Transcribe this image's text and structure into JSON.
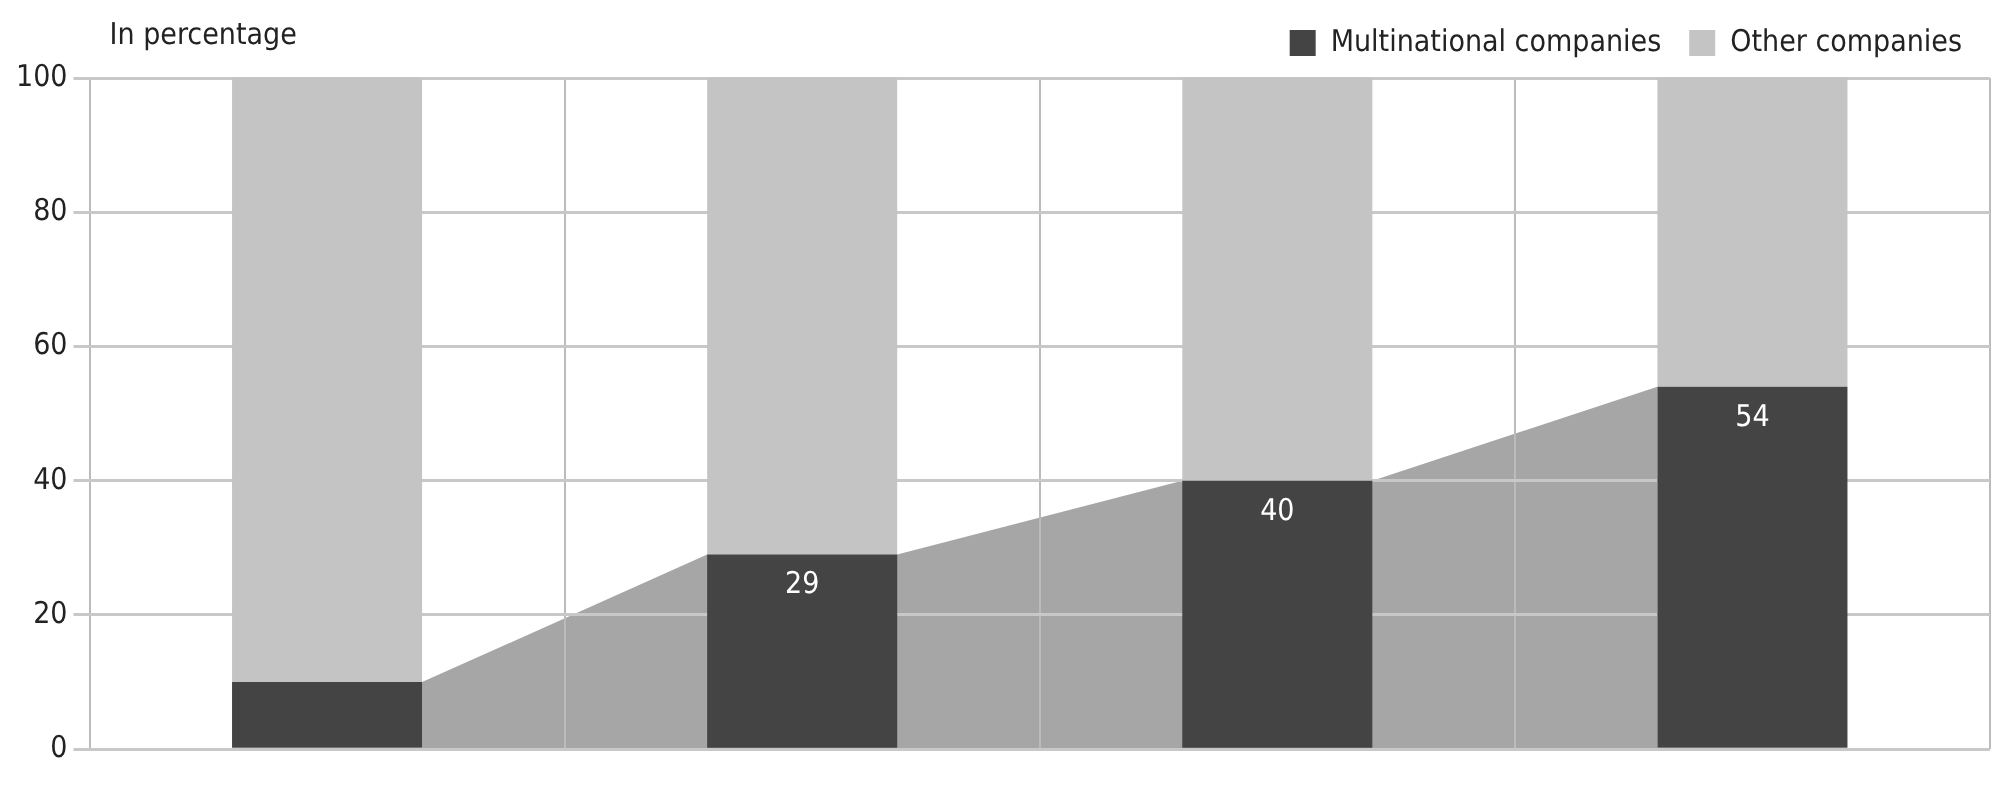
{
  "chart_data": {
    "type": "bar",
    "ylabel": "In percentage",
    "stacked": true,
    "categories": [
      null,
      null,
      null,
      null
    ],
    "series": [
      {
        "name": "Multinational companies",
        "color": "#444444",
        "values": [
          10,
          29,
          40,
          54
        ],
        "value_labels": [
          null,
          "29",
          "40",
          "54"
        ]
      },
      {
        "name": "Other companies",
        "color": "#c4c4c4",
        "values": [
          90,
          71,
          60,
          46
        ]
      }
    ],
    "ylim": [
      0,
      100
    ],
    "yticks": [
      0,
      20,
      40,
      60,
      80,
      100
    ],
    "grid": true,
    "legend": "top right"
  }
}
